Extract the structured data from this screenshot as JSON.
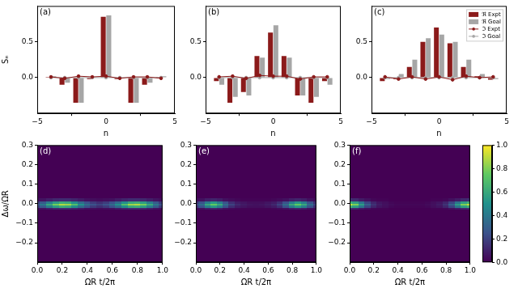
{
  "chart_data": [
    {
      "type": "bar",
      "label": "(a)",
      "x_label": "n",
      "y_label": "Sₙ",
      "xlim": [
        -5,
        5
      ],
      "xticks": [
        {
          "value": -5,
          "label": "−5"
        },
        0,
        5
      ],
      "ylim": [
        -0.5,
        1
      ],
      "yticks": [
        {
          "value": 0,
          "label": "0.0"
        },
        {
          "value": 0.5,
          "label": "0.5"
        }
      ],
      "x": [
        -4,
        -3,
        -2,
        -1,
        0,
        1,
        2,
        3,
        4
      ],
      "series": [
        {
          "name": "ℜ Expt",
          "type": "bar",
          "color": "#8b1a1a",
          "values": [
            0.01,
            -0.1,
            -0.35,
            -0.02,
            0.85,
            -0.02,
            -0.35,
            -0.1,
            0.01
          ]
        },
        {
          "name": "ℜ Goal",
          "type": "bar",
          "color": "#a6a6a6",
          "values": [
            0.02,
            -0.07,
            -0.35,
            0,
            0.87,
            0,
            -0.35,
            -0.07,
            0.02
          ]
        },
        {
          "name": "ℑ Expt",
          "type": "line",
          "color": "#8b1a1a",
          "marker": "circle",
          "values": [
            0.01,
            -0.01,
            0.02,
            0.01,
            0.02,
            -0.01,
            0.01,
            0.01,
            -0.01
          ]
        },
        {
          "name": "ℑ Goal",
          "type": "line",
          "color": "#a6a6a6",
          "marker": "circle",
          "values": [
            0,
            0,
            0,
            0,
            0,
            0,
            0,
            0,
            0
          ]
        }
      ]
    },
    {
      "type": "bar",
      "label": "(b)",
      "x_label": "n",
      "xlim": [
        -5,
        5
      ],
      "xticks": [
        {
          "value": -5,
          "label": "−5"
        },
        0,
        5
      ],
      "ylim": [
        -0.5,
        1
      ],
      "yticks": [
        {
          "value": 0,
          "label": "0.0"
        },
        {
          "value": 0.5,
          "label": "0.5"
        }
      ],
      "x": [
        -4,
        -3,
        -2,
        -1,
        0,
        1,
        2,
        3,
        4
      ],
      "series": [
        {
          "name": "ℜ Expt",
          "type": "bar",
          "color": "#8b1a1a",
          "values": [
            -0.05,
            -0.35,
            -0.2,
            0.3,
            0.63,
            0.3,
            -0.25,
            -0.35,
            -0.05
          ]
        },
        {
          "name": "ℜ Goal",
          "type": "bar",
          "color": "#a6a6a6",
          "values": [
            -0.1,
            -0.27,
            -0.25,
            0.28,
            0.73,
            0.28,
            -0.25,
            -0.27,
            -0.1
          ]
        },
        {
          "name": "ℑ Expt",
          "type": "line",
          "color": "#8b1a1a",
          "marker": "circle",
          "values": [
            0.01,
            0.02,
            -0.01,
            0.03,
            0.02,
            0.02,
            -0.02,
            0.01,
            0.01
          ]
        },
        {
          "name": "ℑ Goal",
          "type": "line",
          "color": "#a6a6a6",
          "marker": "circle",
          "values": [
            0,
            0,
            0,
            0,
            0,
            0,
            0,
            0,
            0
          ]
        }
      ]
    },
    {
      "type": "bar",
      "label": "(c)",
      "x_label": "n",
      "legend": "upper right",
      "xlim": [
        -5,
        5
      ],
      "xticks": [
        {
          "value": -5,
          "label": "−5"
        },
        0,
        5
      ],
      "ylim": [
        -0.5,
        1
      ],
      "yticks": [
        {
          "value": 0,
          "label": "0.0"
        },
        {
          "value": 0.5,
          "label": "0.5"
        }
      ],
      "x": [
        -4,
        -3,
        -2,
        -1,
        0,
        1,
        2,
        3,
        4
      ],
      "series": [
        {
          "name": "ℜ Expt",
          "type": "bar",
          "color": "#8b1a1a",
          "values": [
            -0.05,
            -0.02,
            0.15,
            0.5,
            0.7,
            0.48,
            0.15,
            0.02,
            -0.03
          ]
        },
        {
          "name": "ℜ Goal",
          "type": "bar",
          "color": "#a6a6a6",
          "values": [
            -0.02,
            0.05,
            0.25,
            0.55,
            0.6,
            0.5,
            0.25,
            0.05,
            -0.02
          ]
        },
        {
          "name": "ℑ Expt",
          "type": "line",
          "color": "#8b1a1a",
          "marker": "circle",
          "values": [
            0.01,
            -0.02,
            0.01,
            -0.02,
            0.01,
            -0.03,
            0.02,
            0,
            0.01
          ]
        },
        {
          "name": "ℑ Goal",
          "type": "line",
          "color": "#a6a6a6",
          "marker": "circle",
          "values": [
            0,
            0,
            0,
            0,
            0,
            0,
            0,
            0,
            0
          ]
        }
      ]
    },
    {
      "type": "heatmap",
      "label": "(d)",
      "x_label": "ΩR t/2π",
      "y_label": "Δω/ΩR",
      "xlim": [
        0,
        1
      ],
      "xticks": [
        {
          "value": 0,
          "label": "0.0"
        },
        {
          "value": 0.2,
          "label": "0.2"
        },
        {
          "value": 0.4,
          "label": "0.4"
        },
        {
          "value": 0.6,
          "label": "0.6"
        },
        {
          "value": 0.8,
          "label": "0.8"
        },
        {
          "value": 1,
          "label": "1.0"
        }
      ],
      "ylim": [
        -0.3,
        0.3
      ],
      "yticks": [
        {
          "value": -0.2,
          "label": "−0.2"
        },
        {
          "value": -0.1,
          "label": "−0.1"
        },
        {
          "value": 0,
          "label": "0.0"
        },
        {
          "value": 0.1,
          "label": "0.1"
        },
        {
          "value": 0.2,
          "label": "0.2"
        },
        {
          "value": 0.3,
          "label": "0.3"
        }
      ],
      "x": [
        0,
        0.05,
        0.1,
        0.15,
        0.2,
        0.25,
        0.3,
        0.35,
        0.4,
        0.45,
        0.5,
        0.55,
        0.6,
        0.65,
        0.7,
        0.75,
        0.8,
        0.85,
        0.9,
        0.95,
        1
      ],
      "y": [
        -0.02,
        -0.01,
        0,
        0.01,
        0.02
      ],
      "z": [
        [
          0.04,
          0.06,
          0.09,
          0.12,
          0.13,
          0.13,
          0.11,
          0.08,
          0.05,
          0.04,
          0.03,
          0.04,
          0.05,
          0.08,
          0.11,
          0.13,
          0.13,
          0.12,
          0.09,
          0.06,
          0.04
        ],
        [
          0.18,
          0.28,
          0.42,
          0.55,
          0.62,
          0.6,
          0.49,
          0.35,
          0.25,
          0.18,
          0.14,
          0.18,
          0.25,
          0.35,
          0.49,
          0.6,
          0.62,
          0.55,
          0.42,
          0.28,
          0.18
        ],
        [
          0.25,
          0.4,
          0.6,
          0.78,
          0.88,
          0.85,
          0.7,
          0.5,
          0.35,
          0.25,
          0.2,
          0.25,
          0.35,
          0.5,
          0.7,
          0.85,
          0.88,
          0.78,
          0.6,
          0.4,
          0.25
        ],
        [
          0.18,
          0.28,
          0.42,
          0.55,
          0.62,
          0.6,
          0.49,
          0.35,
          0.25,
          0.18,
          0.14,
          0.18,
          0.25,
          0.35,
          0.49,
          0.6,
          0.62,
          0.55,
          0.42,
          0.28,
          0.18
        ],
        [
          0.04,
          0.06,
          0.09,
          0.12,
          0.13,
          0.13,
          0.11,
          0.08,
          0.05,
          0.04,
          0.03,
          0.04,
          0.05,
          0.08,
          0.11,
          0.13,
          0.13,
          0.12,
          0.09,
          0.06,
          0.04
        ]
      ]
    },
    {
      "type": "heatmap",
      "label": "(e)",
      "x_label": "ΩR t/2π",
      "xlim": [
        0,
        1
      ],
      "xticks": [
        {
          "value": 0,
          "label": "0.0"
        },
        {
          "value": 0.2,
          "label": "0.2"
        },
        {
          "value": 0.4,
          "label": "0.4"
        },
        {
          "value": 0.6,
          "label": "0.6"
        },
        {
          "value": 0.8,
          "label": "0.8"
        },
        {
          "value": 1,
          "label": "1.0"
        }
      ],
      "ylim": [
        -0.3,
        0.3
      ],
      "yticks": [
        {
          "value": -0.2,
          "label": "−0.2"
        },
        {
          "value": -0.1,
          "label": "−0.1"
        },
        {
          "value": 0,
          "label": "0.0"
        },
        {
          "value": 0.1,
          "label": "0.1"
        },
        {
          "value": 0.2,
          "label": "0.2"
        },
        {
          "value": 0.3,
          "label": "0.3"
        }
      ],
      "x": [
        0,
        0.05,
        0.1,
        0.15,
        0.2,
        0.25,
        0.3,
        0.35,
        0.4,
        0.45,
        0.5,
        0.55,
        0.6,
        0.65,
        0.7,
        0.75,
        0.8,
        0.85,
        0.9,
        0.95,
        1
      ],
      "y": [
        -0.02,
        -0.01,
        0,
        0.01,
        0.02
      ],
      "z": [
        [
          0.03,
          0.05,
          0.09,
          0.11,
          0.09,
          0.05,
          0.03,
          0.02,
          0.01,
          0.01,
          0.01,
          0.01,
          0.01,
          0.02,
          0.03,
          0.05,
          0.09,
          0.11,
          0.09,
          0.05,
          0.03
        ],
        [
          0.14,
          0.25,
          0.42,
          0.53,
          0.42,
          0.25,
          0.14,
          0.08,
          0.06,
          0.04,
          0.04,
          0.04,
          0.06,
          0.08,
          0.14,
          0.25,
          0.42,
          0.53,
          0.42,
          0.25,
          0.14
        ],
        [
          0.2,
          0.35,
          0.6,
          0.75,
          0.6,
          0.35,
          0.2,
          0.12,
          0.08,
          0.06,
          0.05,
          0.06,
          0.08,
          0.12,
          0.2,
          0.35,
          0.6,
          0.75,
          0.6,
          0.35,
          0.2
        ],
        [
          0.14,
          0.25,
          0.42,
          0.53,
          0.42,
          0.25,
          0.14,
          0.08,
          0.06,
          0.04,
          0.04,
          0.04,
          0.06,
          0.08,
          0.14,
          0.25,
          0.42,
          0.53,
          0.42,
          0.25,
          0.14
        ],
        [
          0.03,
          0.05,
          0.09,
          0.11,
          0.09,
          0.05,
          0.03,
          0.02,
          0.01,
          0.01,
          0.01,
          0.01,
          0.01,
          0.02,
          0.03,
          0.05,
          0.09,
          0.11,
          0.09,
          0.05,
          0.03
        ]
      ]
    },
    {
      "type": "heatmap",
      "label": "(f)",
      "x_label": "ΩR t/2π",
      "xlim": [
        0,
        1
      ],
      "xticks": [
        {
          "value": 0,
          "label": "0.0"
        },
        {
          "value": 0.2,
          "label": "0.2"
        },
        {
          "value": 0.4,
          "label": "0.4"
        },
        {
          "value": 0.6,
          "label": "0.6"
        },
        {
          "value": 0.8,
          "label": "0.8"
        },
        {
          "value": 1,
          "label": "1.0"
        }
      ],
      "ylim": [
        -0.3,
        0.3
      ],
      "yticks": [
        {
          "value": -0.2,
          "label": "−0.2"
        },
        {
          "value": -0.1,
          "label": "−0.1"
        },
        {
          "value": 0,
          "label": "0.0"
        },
        {
          "value": 0.1,
          "label": "0.1"
        },
        {
          "value": 0.2,
          "label": "0.2"
        },
        {
          "value": 0.3,
          "label": "0.3"
        }
      ],
      "x": [
        0,
        0.05,
        0.1,
        0.15,
        0.2,
        0.25,
        0.3,
        0.35,
        0.4,
        0.45,
        0.5,
        0.55,
        0.6,
        0.65,
        0.7,
        0.75,
        0.8,
        0.85,
        0.9,
        0.95,
        1
      ],
      "y": [
        -0.02,
        -0.01,
        0,
        0.01,
        0.02
      ],
      "z": [
        [
          0.14,
          0.12,
          0.08,
          0.05,
          0.02,
          0.01,
          0.01,
          0,
          0,
          0,
          0,
          0,
          0,
          0,
          0.01,
          0.01,
          0.02,
          0.05,
          0.08,
          0.12,
          0.14
        ],
        [
          0.63,
          0.56,
          0.39,
          0.21,
          0.11,
          0.06,
          0.04,
          0.02,
          0.01,
          0.01,
          0.01,
          0.01,
          0.01,
          0.02,
          0.04,
          0.06,
          0.11,
          0.21,
          0.39,
          0.56,
          0.63
        ],
        [
          0.9,
          0.8,
          0.55,
          0.3,
          0.15,
          0.08,
          0.05,
          0.03,
          0.02,
          0.02,
          0.02,
          0.02,
          0.02,
          0.03,
          0.05,
          0.08,
          0.15,
          0.3,
          0.55,
          0.8,
          0.9
        ],
        [
          0.63,
          0.56,
          0.39,
          0.21,
          0.11,
          0.06,
          0.04,
          0.02,
          0.01,
          0.01,
          0.01,
          0.01,
          0.01,
          0.02,
          0.04,
          0.06,
          0.11,
          0.21,
          0.39,
          0.56,
          0.63
        ],
        [
          0.14,
          0.12,
          0.08,
          0.05,
          0.02,
          0.01,
          0.01,
          0,
          0,
          0,
          0,
          0,
          0,
          0,
          0.01,
          0.01,
          0.02,
          0.05,
          0.08,
          0.12,
          0.14
        ]
      ],
      "colorbar": {
        "range": [
          0,
          1
        ],
        "ticks": [
          {
            "value": 0,
            "label": "0.0"
          },
          {
            "value": 0.2,
            "label": "0.2"
          },
          {
            "value": 0.4,
            "label": "0.4"
          },
          {
            "value": 0.6,
            "label": "0.6"
          },
          {
            "value": 0.8,
            "label": "0.8"
          },
          {
            "value": 1,
            "label": "1.0"
          }
        ]
      }
    }
  ]
}
